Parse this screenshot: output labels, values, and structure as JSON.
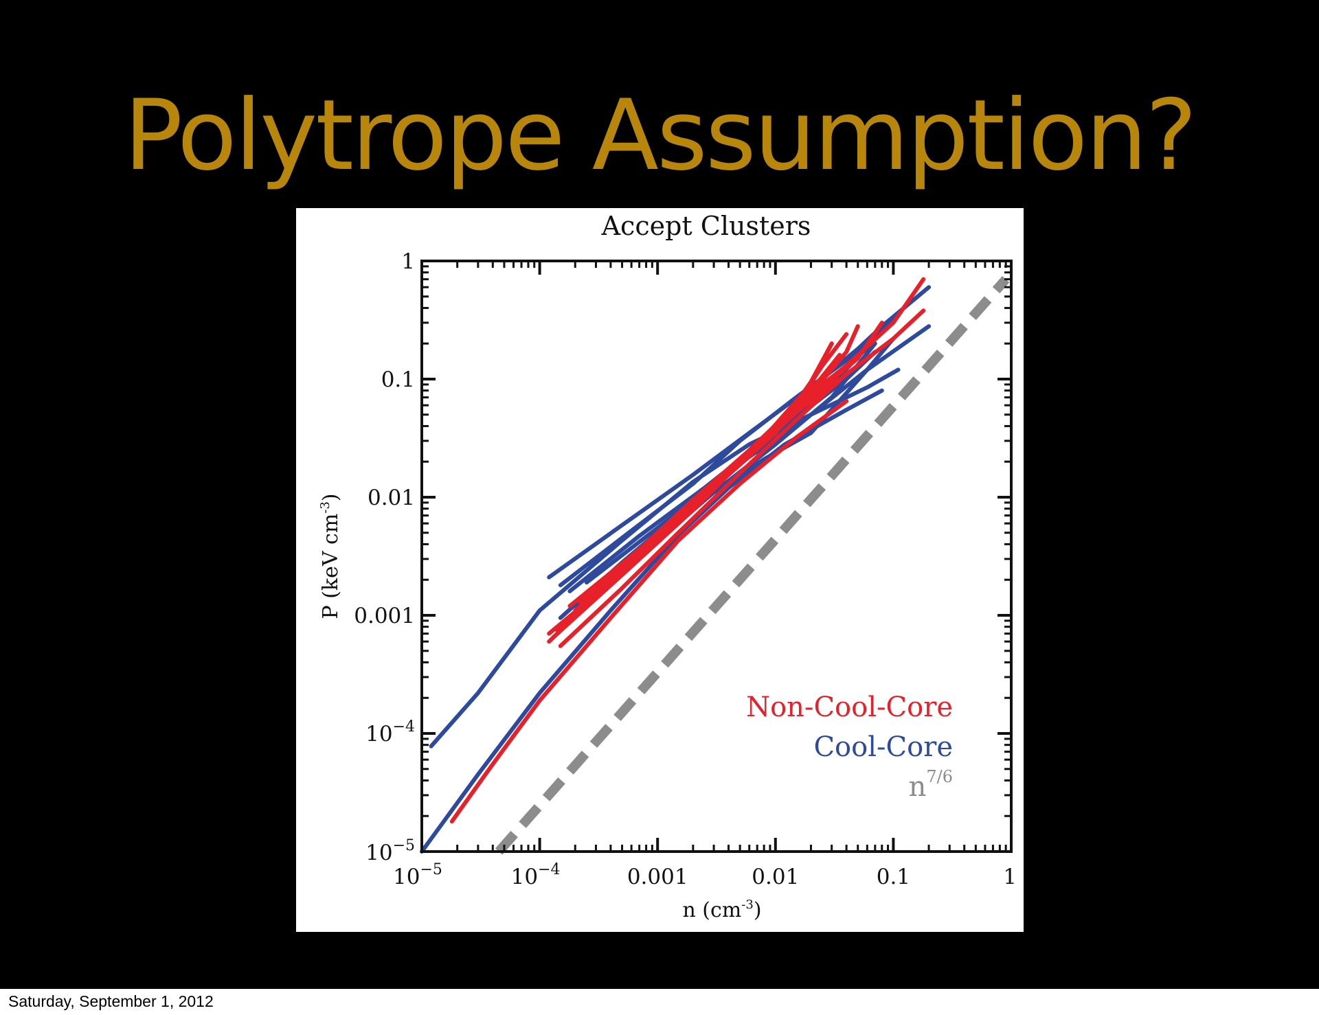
{
  "slide": {
    "title": "Polytrope Assumption?",
    "footer_date": "Saturday, September 1, 2012"
  },
  "colors": {
    "background": "#000000",
    "title": "#b8860b",
    "non_cool_core": "#e8202a",
    "cool_core": "#2e4a9e",
    "reference": "#8c8c8c"
  },
  "chart_data": {
    "type": "line",
    "title": "Accept Clusters",
    "xlabel": "n (cm",
    "xlabel_sup": "-3",
    "xlabel_end": ")",
    "ylabel": "P (keV cm",
    "ylabel_sup": "-3",
    "ylabel_end": ")",
    "x_scale": "log",
    "y_scale": "log",
    "xlim": [
      1e-05,
      1
    ],
    "ylim": [
      1e-05,
      1
    ],
    "x_ticks": [
      {
        "value": 1e-05,
        "label": "10",
        "sup": "−5"
      },
      {
        "value": 0.0001,
        "label": "10",
        "sup": "−4"
      },
      {
        "value": 0.001,
        "label": "0.001",
        "sup": ""
      },
      {
        "value": 0.01,
        "label": "0.01",
        "sup": ""
      },
      {
        "value": 0.1,
        "label": "0.1",
        "sup": ""
      },
      {
        "value": 1,
        "label": "1",
        "sup": ""
      }
    ],
    "y_ticks": [
      {
        "value": 1e-05,
        "label": "10",
        "sup": "−5"
      },
      {
        "value": 0.0001,
        "label": "10",
        "sup": "−4"
      },
      {
        "value": 0.001,
        "label": "0.001",
        "sup": ""
      },
      {
        "value": 0.01,
        "label": "0.01",
        "sup": ""
      },
      {
        "value": 0.1,
        "label": "0.1",
        "sup": ""
      },
      {
        "value": 1,
        "label": "1",
        "sup": ""
      }
    ],
    "grid": false,
    "legend": {
      "placement": "bottom-right",
      "entries": [
        {
          "label": "Non-Cool-Core",
          "sup": "",
          "color": "#e8202a"
        },
        {
          "label": "Cool-Core",
          "sup": "",
          "color": "#2e4a9e"
        },
        {
          "label": "n",
          "sup": "7/6",
          "color": "#8c8c8c"
        }
      ]
    },
    "series": [
      {
        "group": "Cool-Core",
        "color": "#2e4a9e",
        "points": [
          [
            1.2e-05,
            7.8e-05
          ],
          [
            3e-05,
            0.00022
          ],
          [
            0.0001,
            0.0011
          ],
          [
            0.0005,
            0.0043
          ],
          [
            0.002,
            0.0135
          ],
          [
            0.006,
            0.028
          ],
          [
            0.02,
            0.05
          ],
          [
            0.06,
            0.085
          ],
          [
            0.11,
            0.12
          ]
        ]
      },
      {
        "group": "Cool-Core",
        "color": "#2e4a9e",
        "points": [
          [
            1e-05,
            1e-05
          ],
          [
            3e-05,
            4.5e-05
          ],
          [
            0.0001,
            0.00022
          ],
          [
            0.0004,
            0.0011
          ],
          [
            0.0015,
            0.0048
          ],
          [
            0.004,
            0.012
          ],
          [
            0.012,
            0.028
          ],
          [
            0.04,
            0.055
          ],
          [
            0.08,
            0.08
          ]
        ]
      },
      {
        "group": "Cool-Core",
        "color": "#2e4a9e",
        "points": [
          [
            0.00012,
            0.0021
          ],
          [
            0.0005,
            0.0058
          ],
          [
            0.002,
            0.0155
          ],
          [
            0.006,
            0.035
          ],
          [
            0.02,
            0.085
          ],
          [
            0.05,
            0.18
          ],
          [
            0.08,
            0.28
          ],
          [
            0.2,
            0.6
          ]
        ]
      },
      {
        "group": "Cool-Core",
        "color": "#2e4a9e",
        "points": [
          [
            0.00015,
            0.0018
          ],
          [
            0.0006,
            0.0052
          ],
          [
            0.002,
            0.013
          ],
          [
            0.005,
            0.03
          ],
          [
            0.015,
            0.07
          ],
          [
            0.05,
            0.17
          ],
          [
            0.1,
            0.33
          ]
        ]
      },
      {
        "group": "Cool-Core",
        "color": "#2e4a9e",
        "points": [
          [
            0.0003,
            0.0014
          ],
          [
            0.001,
            0.0043
          ],
          [
            0.003,
            0.011
          ],
          [
            0.008,
            0.021
          ],
          [
            0.02,
            0.035
          ],
          [
            0.06,
            0.12
          ],
          [
            0.2,
            0.28
          ]
        ]
      },
      {
        "group": "Cool-Core",
        "color": "#2e4a9e",
        "points": [
          [
            0.00015,
            0.00095
          ],
          [
            0.0005,
            0.0028
          ],
          [
            0.002,
            0.009
          ],
          [
            0.006,
            0.022
          ],
          [
            0.02,
            0.05
          ],
          [
            0.06,
            0.12
          ],
          [
            0.1,
            0.22
          ]
        ]
      },
      {
        "group": "Cool-Core",
        "color": "#2e4a9e",
        "points": [
          [
            0.0002,
            0.0012
          ],
          [
            0.0008,
            0.0038
          ],
          [
            0.003,
            0.011
          ],
          [
            0.01,
            0.028
          ],
          [
            0.03,
            0.07
          ],
          [
            0.07,
            0.2
          ]
        ]
      },
      {
        "group": "Cool-Core",
        "color": "#2e4a9e",
        "points": [
          [
            0.00018,
            0.0016
          ],
          [
            0.0007,
            0.0047
          ],
          [
            0.0025,
            0.012
          ],
          [
            0.008,
            0.03
          ],
          [
            0.025,
            0.075
          ],
          [
            0.08,
            0.25
          ]
        ]
      },
      {
        "group": "Cool-Core",
        "color": "#2e4a9e",
        "points": [
          [
            0.00025,
            0.0019
          ],
          [
            0.001,
            0.0055
          ],
          [
            0.004,
            0.016
          ],
          [
            0.012,
            0.04
          ],
          [
            0.04,
            0.1
          ],
          [
            0.07,
            0.17
          ]
        ]
      },
      {
        "group": "Non-Cool-Core",
        "color": "#e8202a",
        "points": [
          [
            1.8e-05,
            1.8e-05
          ],
          [
            4e-05,
            5.5e-05
          ],
          [
            0.0001,
            0.00019
          ],
          [
            0.0004,
            0.00095
          ],
          [
            0.0015,
            0.0043
          ],
          [
            0.005,
            0.013
          ],
          [
            0.015,
            0.032
          ],
          [
            0.04,
            0.065
          ]
        ]
      },
      {
        "group": "Non-Cool-Core",
        "color": "#e8202a",
        "points": [
          [
            0.00012,
            0.0006
          ],
          [
            0.0004,
            0.0019
          ],
          [
            0.0015,
            0.0063
          ],
          [
            0.005,
            0.019
          ],
          [
            0.015,
            0.052
          ],
          [
            0.035,
            0.1
          ]
        ]
      },
      {
        "group": "Non-Cool-Core",
        "color": "#e8202a",
        "points": [
          [
            0.00014,
            0.00075
          ],
          [
            0.0005,
            0.0024
          ],
          [
            0.002,
            0.008
          ],
          [
            0.006,
            0.024
          ],
          [
            0.015,
            0.06
          ],
          [
            0.025,
            0.13
          ],
          [
            0.04,
            0.24
          ]
        ]
      },
      {
        "group": "Non-Cool-Core",
        "color": "#e8202a",
        "points": [
          [
            0.00015,
            0.00055
          ],
          [
            0.0005,
            0.0017
          ],
          [
            0.0015,
            0.005
          ],
          [
            0.005,
            0.016
          ],
          [
            0.015,
            0.045
          ],
          [
            0.04,
            0.11
          ],
          [
            0.1,
            0.22
          ],
          [
            0.18,
            0.38
          ]
        ]
      },
      {
        "group": "Non-Cool-Core",
        "color": "#e8202a",
        "points": [
          [
            0.00013,
            0.00065
          ],
          [
            0.0005,
            0.0022
          ],
          [
            0.002,
            0.0078
          ],
          [
            0.007,
            0.027
          ],
          [
            0.02,
            0.075
          ],
          [
            0.04,
            0.17
          ],
          [
            0.05,
            0.28
          ]
        ]
      },
      {
        "group": "Non-Cool-Core",
        "color": "#e8202a",
        "points": [
          [
            0.00016,
            0.00085
          ],
          [
            0.0006,
            0.0028
          ],
          [
            0.002,
            0.0085
          ],
          [
            0.007,
            0.028
          ],
          [
            0.02,
            0.08
          ],
          [
            0.035,
            0.16
          ]
        ]
      },
      {
        "group": "Non-Cool-Core",
        "color": "#e8202a",
        "points": [
          [
            0.0002,
            0.0011
          ],
          [
            0.0008,
            0.0035
          ],
          [
            0.0025,
            0.01
          ],
          [
            0.008,
            0.032
          ],
          [
            0.02,
            0.09
          ],
          [
            0.03,
            0.2
          ]
        ]
      },
      {
        "group": "Non-Cool-Core",
        "color": "#e8202a",
        "points": [
          [
            0.00018,
            0.0012
          ],
          [
            0.0007,
            0.0036
          ],
          [
            0.002,
            0.0095
          ],
          [
            0.006,
            0.025
          ],
          [
            0.015,
            0.06
          ],
          [
            0.04,
            0.13
          ],
          [
            0.1,
            0.3
          ],
          [
            0.18,
            0.7
          ]
        ]
      },
      {
        "group": "Non-Cool-Core",
        "color": "#e8202a",
        "points": [
          [
            0.00022,
            0.0013
          ],
          [
            0.0009,
            0.0042
          ],
          [
            0.003,
            0.012
          ],
          [
            0.01,
            0.035
          ],
          [
            0.02,
            0.095
          ],
          [
            0.03,
            0.2
          ]
        ]
      },
      {
        "group": "Non-Cool-Core",
        "color": "#e8202a",
        "points": [
          [
            0.00012,
            0.0007
          ],
          [
            0.0005,
            0.0023
          ],
          [
            0.002,
            0.0082
          ],
          [
            0.006,
            0.024
          ],
          [
            0.02,
            0.07
          ],
          [
            0.05,
            0.15
          ],
          [
            0.08,
            0.3
          ]
        ]
      },
      {
        "group": "reference",
        "color": "#8c8c8c",
        "dashed": true,
        "points": [
          [
            4.5e-05,
            1e-05
          ],
          [
            0.9,
            0.7
          ]
        ]
      }
    ]
  }
}
